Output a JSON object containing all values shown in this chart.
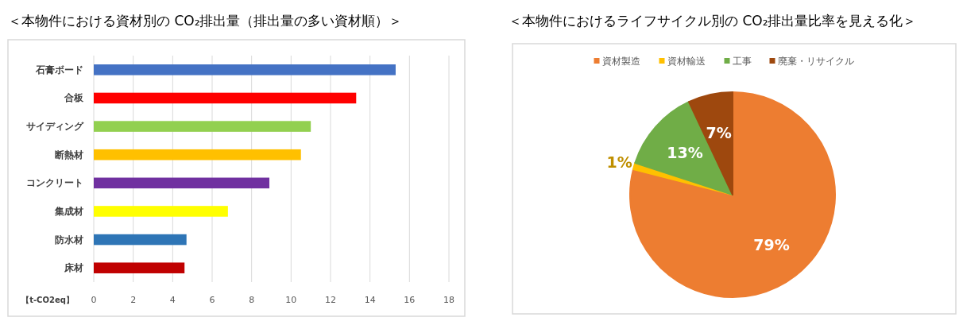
{
  "chart_data": [
    {
      "type": "bar",
      "orientation": "horizontal",
      "title": "＜本物件における資材別の CO₂排出量（排出量の多い資材順）＞",
      "xlabel": "【t-CO2eq】",
      "categories": [
        "石膏ボード",
        "合板",
        "サイディング",
        "断熱材",
        "コンクリート",
        "集成材",
        "防水材",
        "床材"
      ],
      "values": [
        15.3,
        13.3,
        11.0,
        10.5,
        8.9,
        6.8,
        4.7,
        4.6
      ],
      "colors": [
        "#4472c4",
        "#ff0000",
        "#92d050",
        "#ffc000",
        "#7030a0",
        "#ffff00",
        "#2e75b6",
        "#c00000"
      ],
      "xlim": [
        0,
        18
      ],
      "xticks": [
        0,
        2,
        4,
        6,
        8,
        10,
        12,
        14,
        16,
        18
      ],
      "grid": "x"
    },
    {
      "type": "pie",
      "title": "＜本物件におけるライフサイクル別の CO₂排出量比率を見える化＞",
      "categories": [
        "資材製造",
        "資材輸送",
        "工事",
        "廃棄・リサイクル"
      ],
      "values": [
        79,
        1,
        13,
        7
      ],
      "colors": [
        "#ed7d31",
        "#ffc000",
        "#70ad47",
        "#9e480e"
      ],
      "value_labels": [
        "79%",
        "1%",
        "13%",
        "7%"
      ],
      "legend": "top"
    }
  ]
}
